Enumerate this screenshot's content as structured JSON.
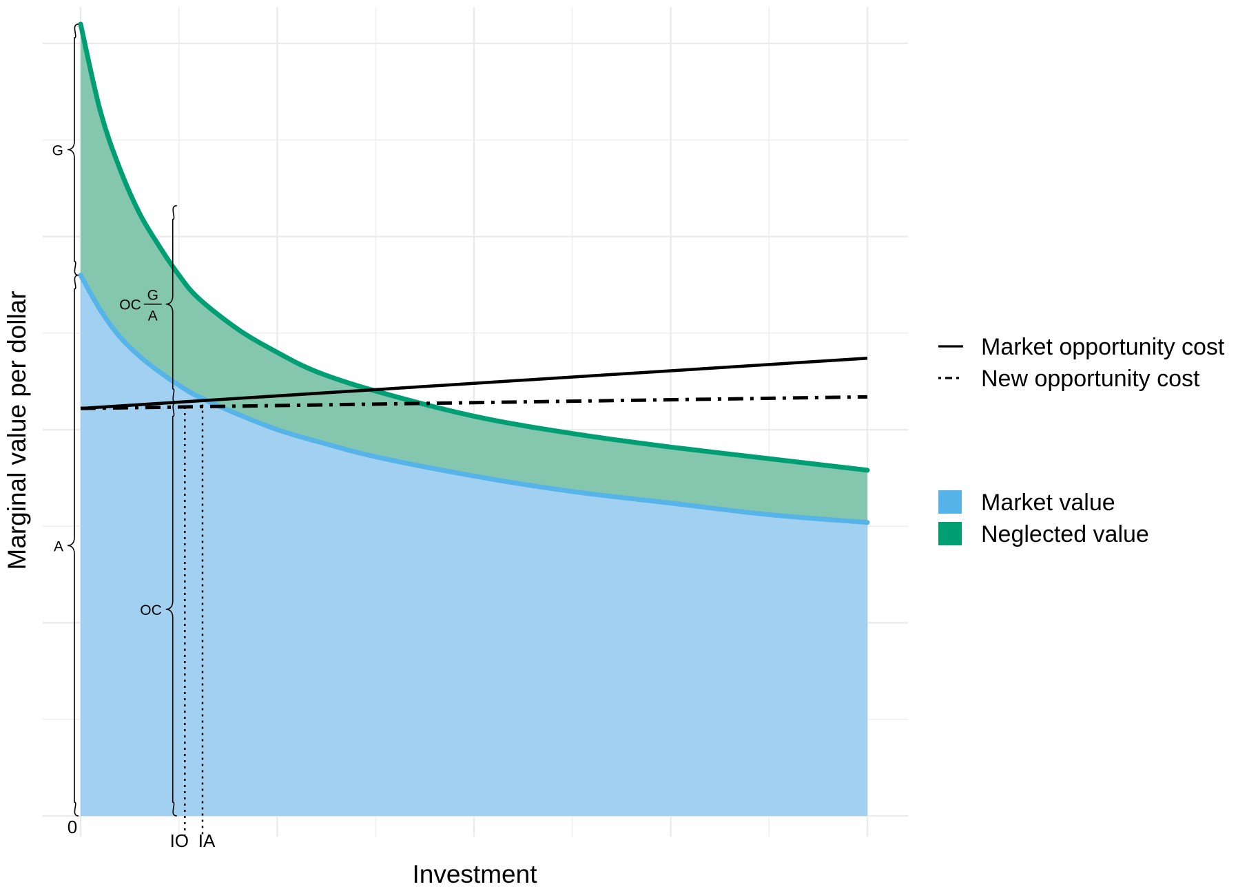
{
  "chart_data": {
    "type": "area",
    "title": "",
    "xlabel": "Investment",
    "ylabel": "Marginal value per dollar",
    "xlim": [
      0,
      4
    ],
    "ylim": [
      0,
      4.1
    ],
    "grid": true,
    "x_tick_labels": [
      {
        "x": 0,
        "label": "0"
      },
      {
        "x": 0.53,
        "label": "IO"
      },
      {
        "x": 0.62,
        "label": "IA"
      }
    ],
    "series": [
      {
        "name": "Market value",
        "kind": "area-curve",
        "color": "#56B4E9",
        "fill": "#A2D0F1",
        "x": [
          0,
          0.1,
          0.2,
          0.3,
          0.4,
          0.5,
          0.6,
          0.8,
          1.0,
          1.2,
          1.5,
          2.0,
          2.5,
          3.0,
          3.5,
          4.0
        ],
        "y": [
          2.8,
          2.62,
          2.48,
          2.38,
          2.3,
          2.23,
          2.17,
          2.08,
          2.0,
          1.94,
          1.86,
          1.76,
          1.68,
          1.62,
          1.56,
          1.52
        ]
      },
      {
        "name": "Neglected value",
        "kind": "area-curve",
        "color": "#009E73",
        "fill": "#84C6AE",
        "x": [
          0,
          0.1,
          0.2,
          0.3,
          0.4,
          0.5,
          0.6,
          0.8,
          1.0,
          1.2,
          1.5,
          2.0,
          2.5,
          3.0,
          3.5,
          4.0
        ],
        "y": [
          4.1,
          3.65,
          3.35,
          3.12,
          2.95,
          2.8,
          2.68,
          2.52,
          2.4,
          2.3,
          2.2,
          2.07,
          1.98,
          1.91,
          1.85,
          1.79
        ]
      },
      {
        "name": "Market opportunity cost",
        "kind": "line",
        "style": "solid",
        "color": "#000000",
        "x": [
          0,
          4
        ],
        "y": [
          2.11,
          2.37
        ]
      },
      {
        "name": "New opportunity cost",
        "kind": "line",
        "style": "dashdot",
        "color": "#000000",
        "x": [
          0,
          4
        ],
        "y": [
          2.11,
          2.17
        ]
      }
    ],
    "reference_lines": [
      {
        "x": 0.53,
        "y_top": 2.15,
        "style": "dotted"
      },
      {
        "x": 0.62,
        "y_top": 2.13,
        "style": "dotted"
      }
    ],
    "annotations": [
      {
        "label": "G",
        "type": "brace",
        "x": 0,
        "y_from": 2.8,
        "y_to": 4.1
      },
      {
        "label": "A",
        "type": "brace",
        "x": 0,
        "y_from": 0,
        "y_to": 2.8
      },
      {
        "label": "OC",
        "type": "brace",
        "x": 0.5,
        "y_from": 0,
        "y_to": 2.14
      },
      {
        "label": "OC",
        "numerator": "G",
        "denominator": "A",
        "type": "brace-fraction",
        "x": 0.5,
        "y_from": 2.14,
        "y_to": 3.16
      }
    ],
    "legend": {
      "placement": "right",
      "line_entries": [
        {
          "label": "Market opportunity cost",
          "style": "solid"
        },
        {
          "label": "New opportunity cost",
          "style": "dashdot"
        }
      ],
      "fill_entries": [
        {
          "label": "Market value",
          "color": "#56B4E9"
        },
        {
          "label": "Neglected value",
          "color": "#009E73"
        }
      ]
    }
  }
}
